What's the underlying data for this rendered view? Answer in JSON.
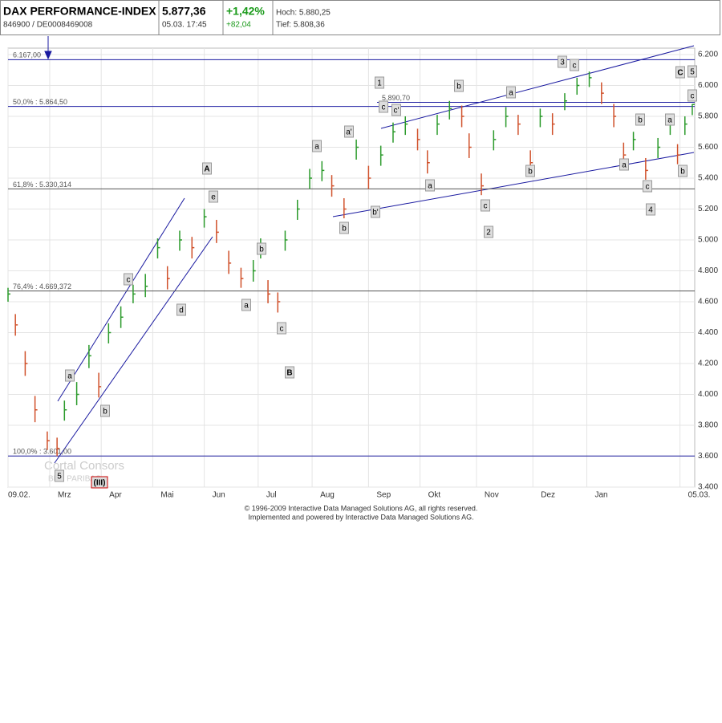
{
  "header": {
    "name": "DAX PERFORMANCE-INDEX",
    "id": "846900 / DE0008469008",
    "price": "5.877,36",
    "time": "05.03. 17:45",
    "change_pct": "+1,42%",
    "change_abs": "+82,04",
    "high": "Hoch: 5.880,25",
    "low": "Tief: 5.808,36"
  },
  "chart_data": {
    "type": "ohlc",
    "x": [
      0,
      3,
      7,
      11,
      16,
      20,
      23,
      28,
      33,
      37,
      41,
      46,
      51,
      56,
      61,
      65,
      70,
      75,
      80,
      85,
      90,
      95,
      100,
      103,
      106,
      110,
      113,
      118,
      123,
      128,
      132,
      137,
      142,
      147,
      152,
      157,
      162,
      167,
      171,
      175,
      180,
      185,
      188,
      193,
      198,
      203,
      208,
      213,
      217,
      222,
      227,
      232,
      237,
      242,
      247,
      251,
      255,
      260,
      265,
      270,
      273,
      276,
      279
    ],
    "close": [
      4650,
      4450,
      4200,
      3900,
      3700,
      3650,
      3900,
      4000,
      4250,
      4050,
      4400,
      4500,
      4650,
      4700,
      4950,
      4750,
      5000,
      4950,
      5150,
      5050,
      4850,
      4750,
      4800,
      4950,
      4650,
      4600,
      5000,
      5200,
      5400,
      5450,
      5350,
      5200,
      5600,
      5400,
      5550,
      5700,
      5750,
      5650,
      5500,
      5750,
      5850,
      5800,
      5600,
      5350,
      5650,
      5800,
      5750,
      5500,
      5800,
      5750,
      5900,
      6000,
      6050,
      5950,
      5800,
      5550,
      5650,
      5450,
      5600,
      5750,
      5550,
      5750,
      5877
    ],
    "high": [
      4690,
      4520,
      4280,
      3990,
      3760,
      3720,
      3960,
      4080,
      4320,
      4140,
      4460,
      4570,
      4710,
      4780,
      5010,
      4830,
      5060,
      5020,
      5200,
      5130,
      4930,
      4820,
      4870,
      5010,
      4740,
      4660,
      5060,
      5260,
      5460,
      5510,
      5420,
      5270,
      5650,
      5480,
      5610,
      5760,
      5800,
      5720,
      5580,
      5810,
      5900,
      5870,
      5690,
      5430,
      5710,
      5860,
      5810,
      5580,
      5850,
      5820,
      5950,
      6050,
      6090,
      6020,
      5880,
      5630,
      5700,
      5530,
      5660,
      5800,
      5620,
      5800,
      5880
    ],
    "low": [
      4600,
      4380,
      4120,
      3820,
      3640,
      3601,
      3830,
      3930,
      4170,
      3980,
      4330,
      4430,
      4590,
      4630,
      4880,
      4680,
      4930,
      4880,
      5080,
      4980,
      4780,
      4690,
      4730,
      4880,
      4590,
      4530,
      4930,
      5130,
      5330,
      5380,
      5280,
      5140,
      5520,
      5330,
      5480,
      5630,
      5680,
      5580,
      5430,
      5680,
      5780,
      5730,
      5530,
      5290,
      5580,
      5730,
      5680,
      5430,
      5730,
      5680,
      5840,
      5940,
      5990,
      5880,
      5730,
      5480,
      5580,
      5390,
      5530,
      5680,
      5490,
      5680,
      5808
    ],
    "up_color": "#2a9a2a",
    "down_color": "#d0502a",
    "xlim": [
      0,
      280
    ],
    "xticks": [
      {
        "value": 0,
        "label": "09.02."
      },
      {
        "value": 17,
        "label": "Mrz"
      },
      {
        "value": 38,
        "label": "Apr"
      },
      {
        "value": 59,
        "label": "Mai"
      },
      {
        "value": 80,
        "label": "Jun"
      },
      {
        "value": 102,
        "label": "Jul"
      },
      {
        "value": 124,
        "label": "Aug"
      },
      {
        "value": 147,
        "label": "Sep"
      },
      {
        "value": 168,
        "label": "Okt"
      },
      {
        "value": 191,
        "label": "Nov"
      },
      {
        "value": 214,
        "label": "Dez"
      },
      {
        "value": 236,
        "label": "Jan"
      },
      {
        "value": 274,
        "label": "05.03."
      }
    ],
    "ylim": [
      3400,
      6200
    ],
    "yticks": [
      {
        "value": 3400,
        "label": "3.400"
      },
      {
        "value": 3600,
        "label": "3.600"
      },
      {
        "value": 3800,
        "label": "3.800"
      },
      {
        "value": 4000,
        "label": "4.000"
      },
      {
        "value": 4200,
        "label": "4.200"
      },
      {
        "value": 4400,
        "label": "4.400"
      },
      {
        "value": 4600,
        "label": "4.600"
      },
      {
        "value": 4800,
        "label": "4.800"
      },
      {
        "value": 5000,
        "label": "5.000"
      },
      {
        "value": 5200,
        "label": "5.200"
      },
      {
        "value": 5400,
        "label": "5.400"
      },
      {
        "value": 5600,
        "label": "5.600"
      },
      {
        "value": 5800,
        "label": "5.800"
      },
      {
        "value": 6000,
        "label": "6.000"
      },
      {
        "value": 6200,
        "label": "6.200"
      }
    ],
    "grid": true,
    "levels": [
      {
        "label": "6.167,00",
        "value": 6167,
        "color": "#1a1aa0"
      },
      {
        "label": "50,0% : 5.864,50",
        "value": 5864.5,
        "color": "#1a1aa0"
      },
      {
        "label": "5.890,70",
        "value": 5890.7,
        "color": "#1a1aa0"
      },
      {
        "label": "61,8% : 5.330,314",
        "value": 5330.314,
        "color": "#555555"
      },
      {
        "label": "76,4% : 4.669,372",
        "value": 4669.372,
        "color": "#555555"
      },
      {
        "label": "100,0% : 3.601,00",
        "value": 3601,
        "color": "#1a1aa0"
      }
    ],
    "annotations": [
      "A",
      "e",
      "c",
      "d",
      "a",
      "b",
      "5",
      "(III)",
      "b",
      "a",
      "c",
      "B",
      "a",
      "a'",
      "b",
      "b'",
      "1",
      "c",
      "c'",
      "b",
      "a",
      "c",
      "2",
      "a",
      "b",
      "3",
      "c",
      "b",
      "a",
      "c",
      "4",
      "a",
      "b",
      "C",
      "5",
      "c"
    ]
  },
  "footer": {
    "watermark": "Cortal Consors",
    "watermark_sub": "BNP PARIBAS",
    "copyright": "© 1996-2009 Interactive Data Managed Solutions AG, all rights reserved.",
    "powered": "Implemented and powered by Interactive Data Managed Solutions AG."
  }
}
